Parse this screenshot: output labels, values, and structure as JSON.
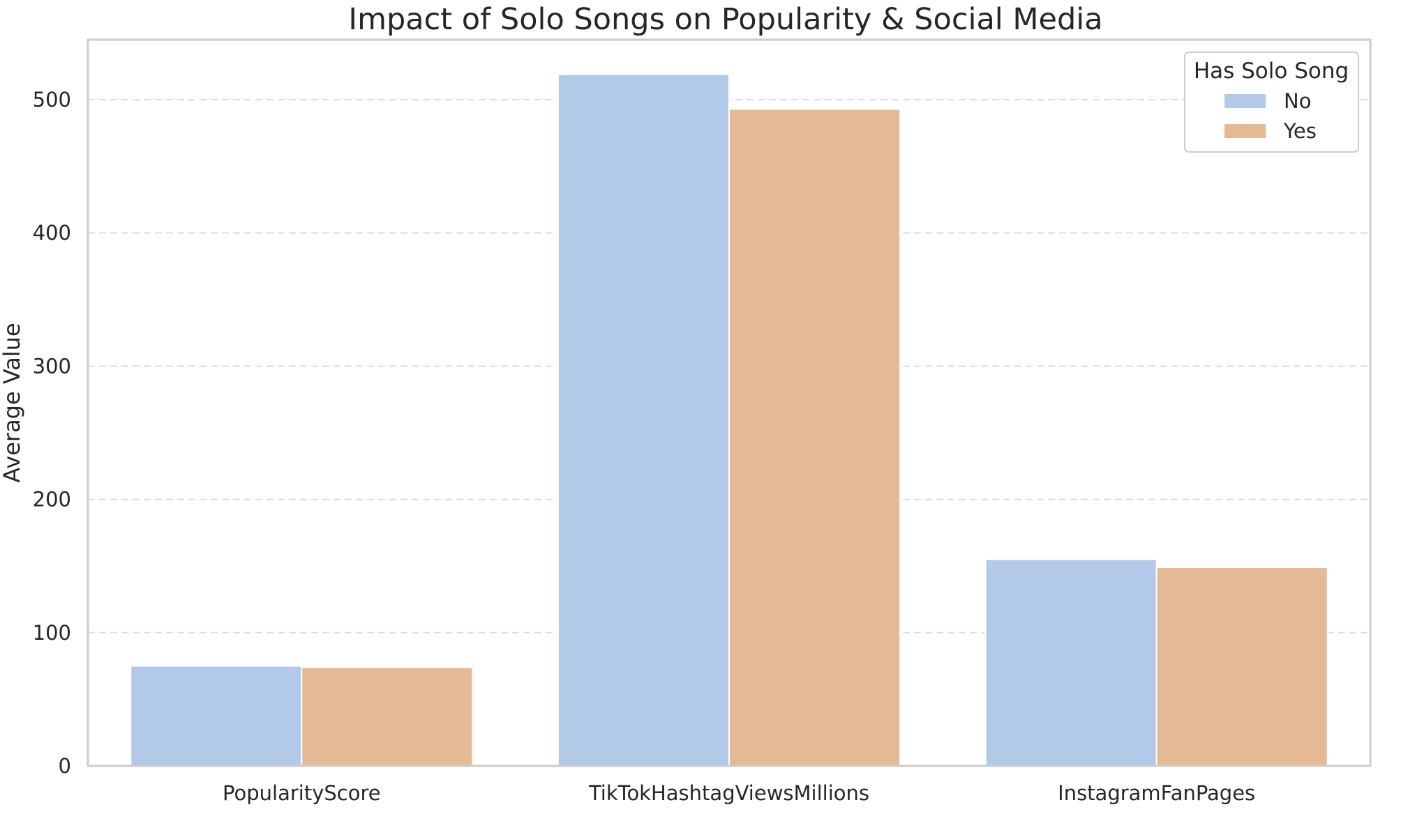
{
  "chart_data": {
    "type": "bar",
    "title": "Impact of Solo Songs on Popularity & Social Media",
    "xlabel": "",
    "ylabel": "Average Value",
    "categories": [
      "PopularityScore",
      "TikTokHashtagViewsMillions",
      "InstagramFanPages"
    ],
    "series": [
      {
        "name": "No",
        "color": "#b3c9e8",
        "values": [
          75,
          519,
          155
        ]
      },
      {
        "name": "Yes",
        "color": "#e6b995",
        "values": [
          74,
          493,
          149
        ]
      }
    ],
    "ylim": [
      0,
      545
    ],
    "yticks": [
      0,
      100,
      200,
      300,
      400,
      500
    ],
    "grid": "y-dashed",
    "legend": {
      "title": "Has Solo Song",
      "position": "top-right"
    }
  }
}
